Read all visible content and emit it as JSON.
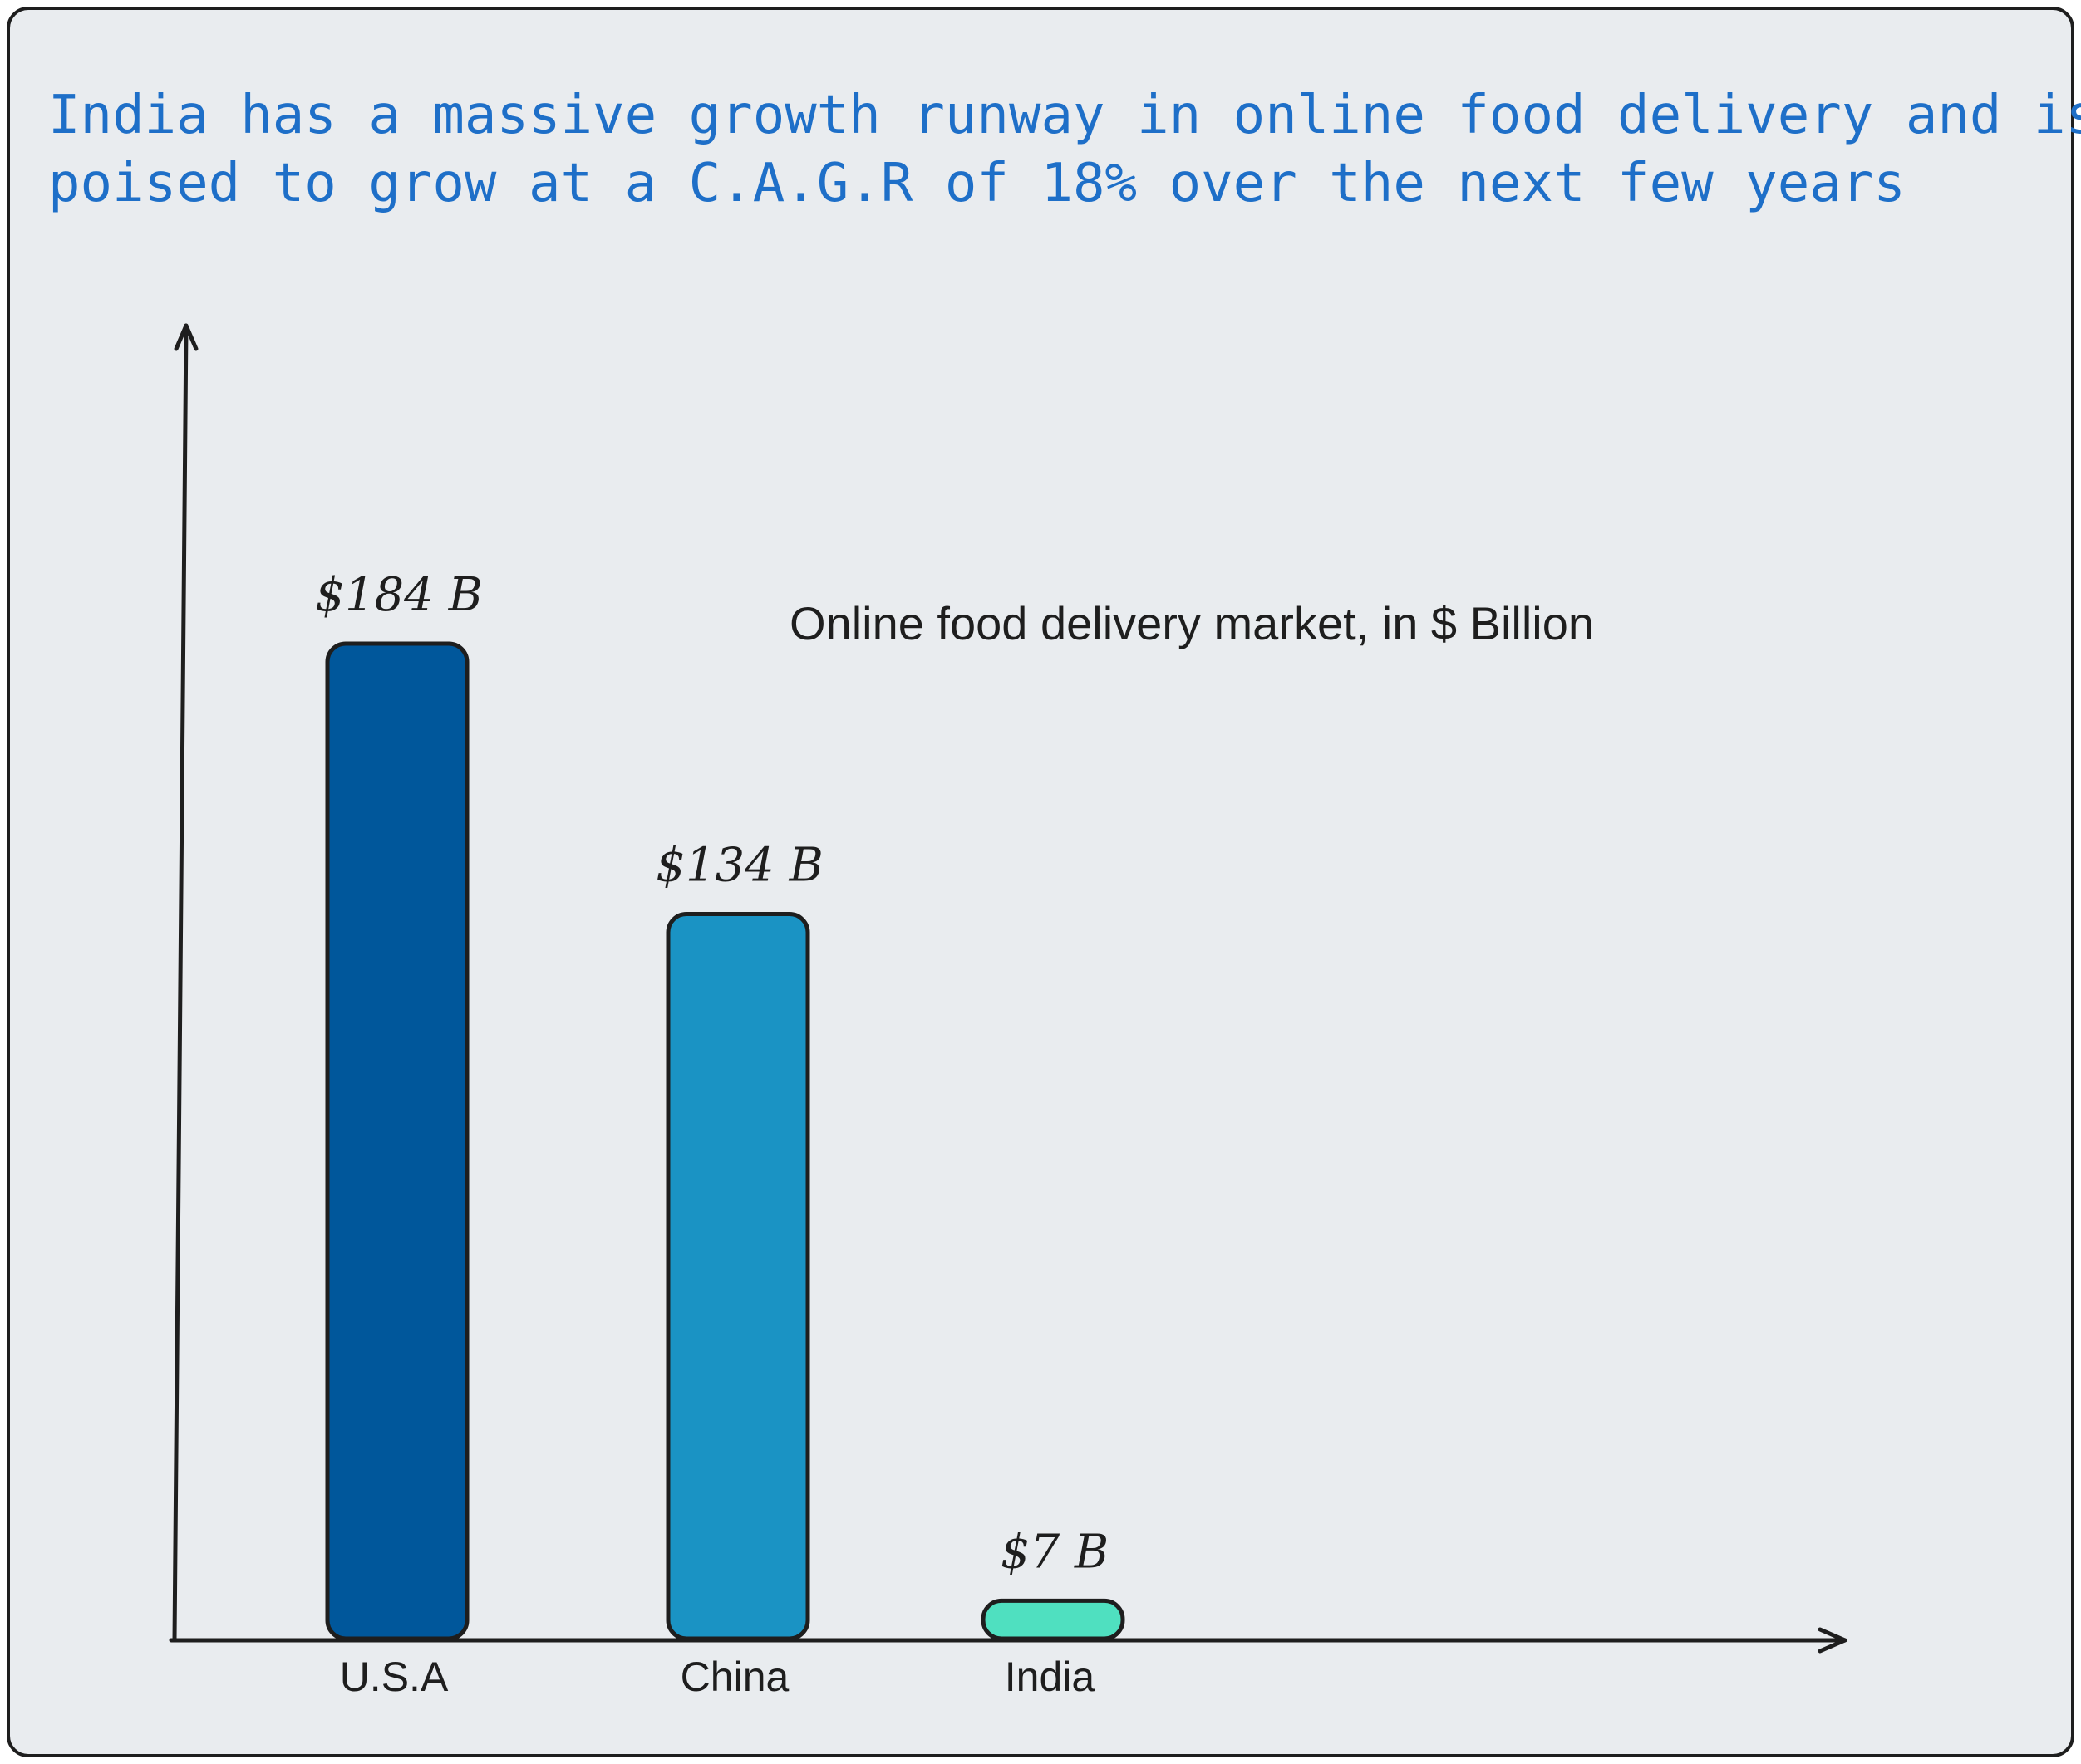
{
  "headline": {
    "line1": "India has a massive growth runway in online food delivery and is",
    "line2": "poised to grow at a C.A.G.R of 18% over the next few years"
  },
  "chart_data": {
    "type": "bar",
    "title": "Online food delivery market, in $ Billion",
    "categories": [
      "U.S.A",
      "China",
      "India"
    ],
    "values": [
      184,
      134,
      7
    ],
    "data_labels": [
      "$184 B",
      "$134 B",
      "$7 B"
    ],
    "colors": [
      "#00579b",
      "#1a93c4",
      "#4fe0c0"
    ],
    "xlabel": "",
    "ylabel": "",
    "ylim": [
      0,
      250
    ],
    "grid": false,
    "legend": "none"
  },
  "colors": {
    "background": "#e9ecef",
    "frame": "#1e1e1e",
    "headline": "#1e6fc8",
    "ink": "#1e1e1e"
  }
}
